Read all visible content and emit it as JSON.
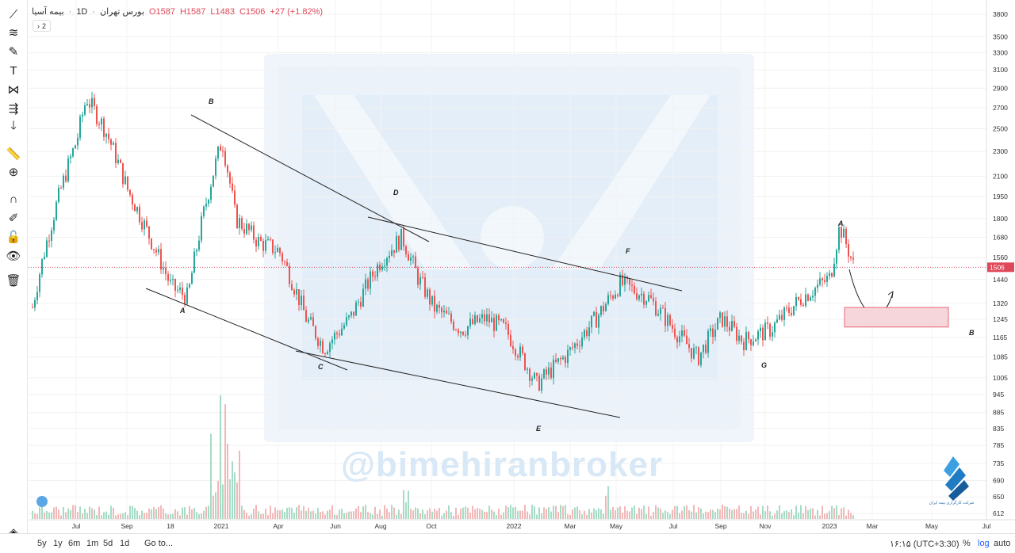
{
  "legend": {
    "symbol": "بیمه آسیا",
    "interval": "1D",
    "exchange": "بورس تهران",
    "open": "O1587",
    "high": "H1587",
    "low": "L1483",
    "close": "C1506",
    "change": "+27 (+1.82%)"
  },
  "indicator_toggle": {
    "count": "2"
  },
  "watermark": {
    "text": "@bimehiranbroker"
  },
  "broker_caption": "شرکت کارگزاری بیمه ایران",
  "bottom_bar": {
    "ranges": [
      "5y",
      "1y",
      "6m",
      "1m",
      "5d",
      "1d"
    ],
    "goto": "Go to...",
    "time": "۱۶:۱۵ (UTC+3:30)",
    "percent": "%",
    "log": "log",
    "auto": "auto"
  },
  "colors": {
    "up": "#26a69a",
    "down": "#ef5350",
    "price_line": "#e0485a",
    "trend_line": "#222222",
    "zone_fill": "#f6d6da",
    "zone_stroke": "#e0485a"
  },
  "chart_data": {
    "type": "candlestick",
    "y_axis_scale": "log",
    "y_ticks": [
      3800,
      3500,
      3300,
      3100,
      2900,
      2700,
      2500,
      2300,
      2100,
      1950,
      1800,
      1680,
      1560,
      1440,
      1320,
      1245,
      1165,
      1085,
      1005,
      945,
      885,
      835,
      785,
      735,
      690,
      650,
      612
    ],
    "x_ticks": [
      "Jul",
      "Sep",
      "18",
      "2021",
      "Apr",
      "Jun",
      "Aug",
      "Oct",
      "2022",
      "Mar",
      "May",
      "Jul",
      "Sep",
      "Nov",
      "2023",
      "Mar",
      "May",
      "Jul"
    ],
    "last_price": 1506,
    "last_price_label": "1506",
    "price_path": [
      [
        "Jun 2020",
        1300
      ],
      [
        "early Jul 2020",
        2400
      ],
      [
        "mid Jul 2020",
        2800
      ],
      [
        "Aug 2020",
        2500
      ],
      [
        "Sep 2020",
        2000
      ],
      [
        "Oct 2020",
        1700
      ],
      [
        "Nov 2020",
        1400
      ],
      [
        "Dec 2020",
        1350
      ],
      [
        "Jan 2021",
        2400
      ],
      [
        "Feb 2021",
        1800
      ],
      [
        "Mar 2021",
        1650
      ],
      [
        "Apr 2021",
        1600
      ],
      [
        "May 2021",
        1250
      ],
      [
        "Jun 2021",
        1120
      ],
      [
        "Jul 2021",
        1250
      ],
      [
        "Aug 2021",
        1550
      ],
      [
        "late Aug 2021",
        1680
      ],
      [
        "Sep 2021",
        1450
      ],
      [
        "Oct 2021",
        1300
      ],
      [
        "Nov 2021",
        1200
      ],
      [
        "Dec 2021",
        1250
      ],
      [
        "Jan 2022",
        1200
      ],
      [
        "Feb 2022",
        980
      ],
      [
        "Mar 2022",
        1100
      ],
      [
        "Apr 2022",
        1250
      ],
      [
        "May 2022",
        1420
      ],
      [
        "Jun 2022",
        1350
      ],
      [
        "Jul 2022",
        1200
      ],
      [
        "Aug 2022",
        1080
      ],
      [
        "Sep 2022",
        1250
      ],
      [
        "Oct 2022",
        1150
      ],
      [
        "Nov 2022",
        1200
      ],
      [
        "Dec 2022",
        1350
      ],
      [
        "Jan 2023",
        1450
      ],
      [
        "late Jan 2023",
        1750
      ],
      [
        "Feb 2023",
        1506
      ]
    ],
    "annotations": [
      {
        "text": "A"
      },
      {
        "text": "B"
      },
      {
        "text": "C"
      },
      {
        "text": "D"
      },
      {
        "text": "E"
      },
      {
        "text": "F"
      },
      {
        "text": "G"
      },
      {
        "text": "A"
      },
      {
        "text": "B"
      }
    ],
    "forecast_zone": {
      "price_low": 1210,
      "price_high": 1300
    }
  }
}
